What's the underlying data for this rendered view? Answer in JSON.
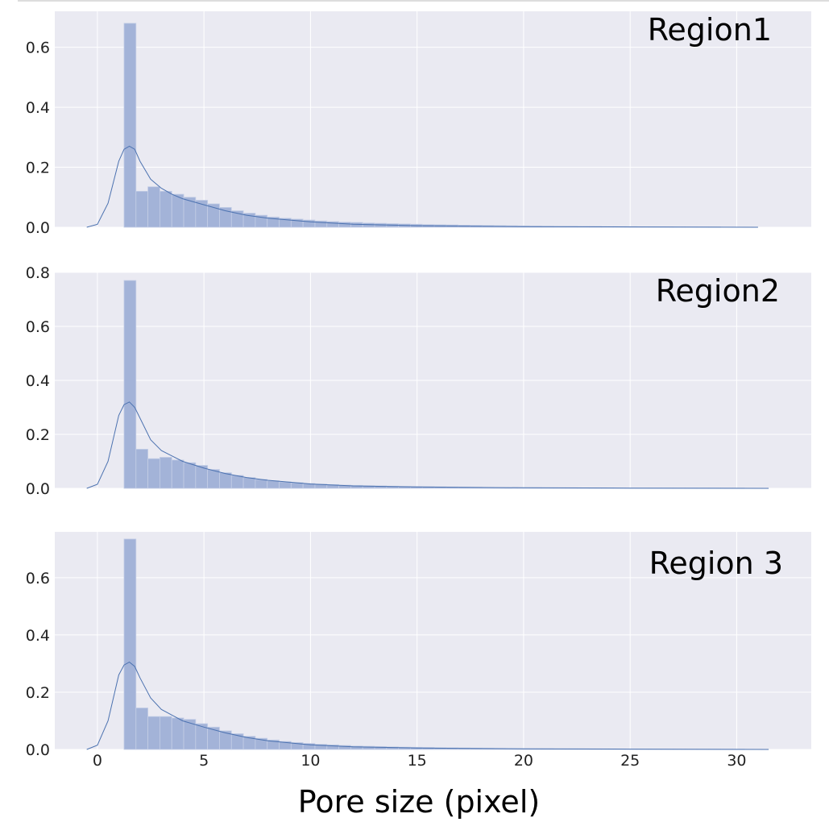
{
  "figure": {
    "xlabel": "Pore size (pixel)",
    "xticks": [
      0,
      5,
      10,
      15,
      20,
      25,
      30
    ],
    "xlim": [
      -2,
      33.5
    ]
  },
  "colors": {
    "background": "#eaeaf2",
    "grid": "#ffffff",
    "bar_fill": "#a3b3d8",
    "bar_edge": "#c4cee6",
    "kde_line": "#4c72b0"
  },
  "chart_data": [
    {
      "type": "bar",
      "label": "Region1",
      "ylim": [
        0,
        0.72
      ],
      "yticks": [
        "0.0",
        "0.2",
        "0.4",
        "0.6"
      ],
      "bin_start": 1.25,
      "bin_width": 0.56,
      "bin_values": [
        0.68,
        0.12,
        0.135,
        0.12,
        0.11,
        0.1,
        0.09,
        0.078,
        0.066,
        0.055,
        0.047,
        0.04,
        0.034,
        0.03,
        0.027,
        0.024,
        0.021,
        0.019,
        0.017,
        0.016,
        0.014,
        0.013,
        0.012,
        0.011,
        0.01,
        0.009,
        0.0085,
        0.008,
        0.007,
        0.0065,
        0.006,
        0.0055,
        0.005,
        0.0045,
        0.004,
        0.0035,
        0.003,
        0.003,
        0.0025,
        0.0025,
        0.002,
        0.002,
        0.002,
        0.0015,
        0.0015,
        0.0015,
        0.001,
        0.001,
        0.001,
        0.001
      ],
      "kde": {
        "x": [
          -0.5,
          0,
          0.5,
          1,
          1.25,
          1.5,
          1.75,
          2,
          2.5,
          3,
          3.5,
          4,
          5,
          6,
          7,
          8,
          10,
          12,
          15,
          20,
          25,
          31
        ],
        "y": [
          0,
          0.01,
          0.08,
          0.22,
          0.26,
          0.27,
          0.26,
          0.22,
          0.16,
          0.13,
          0.11,
          0.095,
          0.075,
          0.055,
          0.04,
          0.03,
          0.018,
          0.01,
          0.005,
          0.002,
          0.001,
          0
        ]
      }
    },
    {
      "type": "bar",
      "label": "Region2",
      "ylim": [
        0,
        0.8
      ],
      "yticks": [
        "0.0",
        "0.2",
        "0.4",
        "0.6",
        "0.8"
      ],
      "bin_start": 1.25,
      "bin_width": 0.56,
      "bin_values": [
        0.77,
        0.145,
        0.11,
        0.115,
        0.105,
        0.095,
        0.085,
        0.07,
        0.058,
        0.048,
        0.04,
        0.033,
        0.028,
        0.024,
        0.021,
        0.018,
        0.016,
        0.014,
        0.012,
        0.011,
        0.01,
        0.009,
        0.008,
        0.007,
        0.0065,
        0.006,
        0.0055,
        0.005,
        0.0045,
        0.004,
        0.0035,
        0.003,
        0.003,
        0.0025,
        0.0025,
        0.002,
        0.002,
        0.002,
        0.0015,
        0.0015,
        0.0015,
        0.001,
        0.001,
        0.001,
        0.001,
        0.001,
        0.001,
        0.001,
        0.001,
        0.001,
        0.001,
        0.001
      ],
      "kde": {
        "x": [
          -0.5,
          0,
          0.5,
          1,
          1.25,
          1.5,
          1.75,
          2,
          2.5,
          3,
          3.5,
          4,
          5,
          6,
          7,
          8,
          10,
          12,
          15,
          20,
          25,
          31.5
        ],
        "y": [
          0,
          0.015,
          0.1,
          0.27,
          0.31,
          0.32,
          0.3,
          0.26,
          0.18,
          0.14,
          0.12,
          0.1,
          0.075,
          0.055,
          0.04,
          0.03,
          0.016,
          0.009,
          0.005,
          0.002,
          0.001,
          0
        ]
      }
    },
    {
      "type": "bar",
      "label": "Region 3",
      "ylim": [
        0,
        0.76
      ],
      "yticks": [
        "0.0",
        "0.2",
        "0.4",
        "0.6"
      ],
      "bin_start": 1.25,
      "bin_width": 0.56,
      "bin_values": [
        0.735,
        0.145,
        0.115,
        0.115,
        0.11,
        0.105,
        0.09,
        0.078,
        0.065,
        0.055,
        0.046,
        0.039,
        0.033,
        0.028,
        0.024,
        0.021,
        0.018,
        0.016,
        0.014,
        0.012,
        0.011,
        0.01,
        0.009,
        0.008,
        0.0075,
        0.007,
        0.006,
        0.0055,
        0.005,
        0.0045,
        0.004,
        0.0035,
        0.003,
        0.003,
        0.0025,
        0.0025,
        0.002,
        0.002,
        0.002,
        0.0015,
        0.0015,
        0.0015,
        0.001,
        0.001,
        0.001,
        0.001,
        0.001,
        0.001,
        0.001,
        0.001,
        0.001,
        0.001
      ],
      "kde": {
        "x": [
          -0.5,
          0,
          0.5,
          1,
          1.25,
          1.5,
          1.75,
          2,
          2.5,
          3,
          3.5,
          4,
          5,
          6,
          7,
          8,
          10,
          12,
          15,
          20,
          25,
          31.5
        ],
        "y": [
          0,
          0.015,
          0.1,
          0.26,
          0.295,
          0.305,
          0.29,
          0.25,
          0.18,
          0.14,
          0.12,
          0.1,
          0.078,
          0.058,
          0.042,
          0.03,
          0.016,
          0.009,
          0.005,
          0.002,
          0.001,
          0
        ]
      }
    }
  ]
}
